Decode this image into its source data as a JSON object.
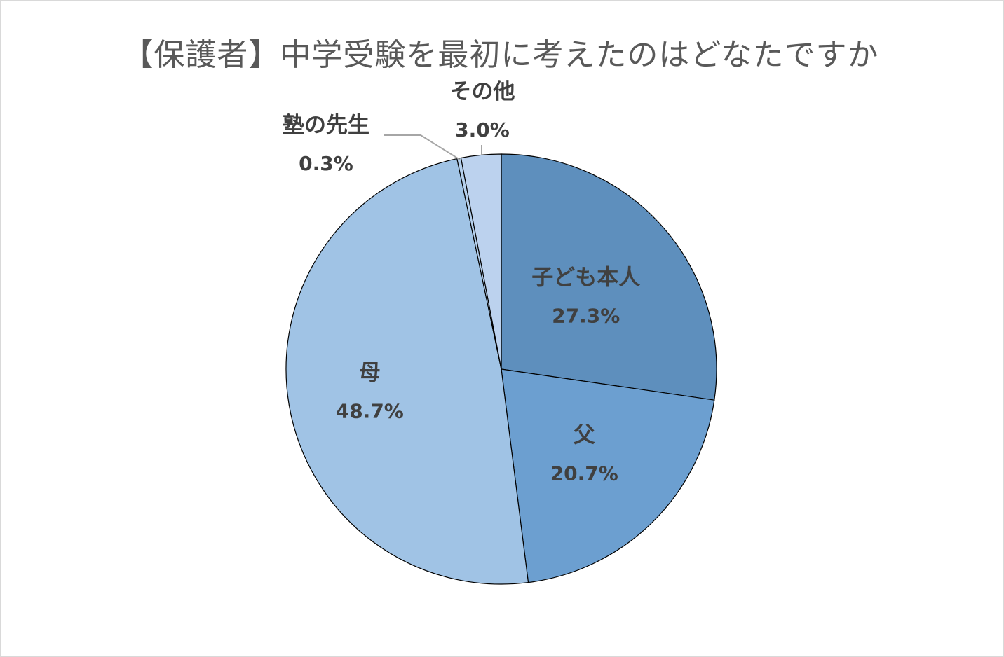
{
  "chart_data": {
    "type": "pie",
    "title": "【保護者】中学受験を最初に考えたのはどなたですか",
    "slices": [
      {
        "label": "子ども本人",
        "value": 27.3,
        "value_label": "27.3%",
        "color": "#5e8fbd"
      },
      {
        "label": "父",
        "value": 20.7,
        "value_label": "20.7%",
        "color": "#6c9fd0"
      },
      {
        "label": "母",
        "value": 48.7,
        "value_label": "48.7%",
        "color": "#a0c3e5"
      },
      {
        "label": "塾の先生",
        "value": 0.3,
        "value_label": "0.3%",
        "color": "#b4cfec"
      },
      {
        "label": "その他",
        "value": 3.0,
        "value_label": "3.0%",
        "color": "#bcd2ee"
      }
    ],
    "start": "12 o'clock",
    "direction": "clockwise",
    "legend": "none",
    "data_labels": "category name and percentage",
    "slice_border_color": "#000000",
    "leader_line_color": "#a6a6a6"
  }
}
